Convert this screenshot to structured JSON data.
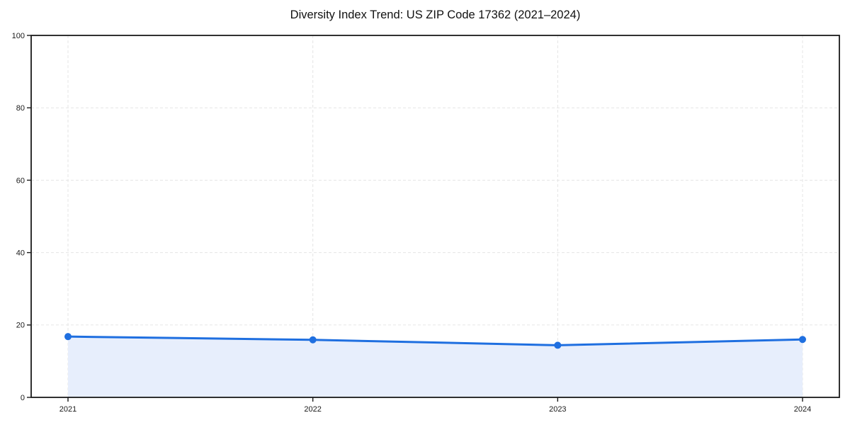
{
  "page": {
    "background": "#ffffff"
  },
  "chart_data": {
    "type": "line",
    "title": "Diversity Index Trend: US ZIP Code 17362 (2021–2024)",
    "x": [
      "2021",
      "2022",
      "2023",
      "2024"
    ],
    "series": [
      {
        "name": "Diversity Index",
        "values": [
          16.8,
          15.9,
          14.4,
          16.0
        ]
      }
    ],
    "xlabel": "",
    "ylabel": "",
    "ylim": [
      0,
      100
    ],
    "yticks": [
      0,
      20,
      40,
      60,
      80,
      100
    ],
    "grid": "dashed-both-directions",
    "legend": "none",
    "area_fill": true,
    "marker": "circle",
    "line_width": 3,
    "marker_radius": 5,
    "colors": {
      "line": "#1f6fe0",
      "marker": "#1f6fe0",
      "area_fill": "#e7eefc",
      "grid": "#e5e5e5",
      "spine": "#1a1a1a",
      "tick_text": "#1a1a1a",
      "title_text": "#111111",
      "background": "#ffffff"
    }
  }
}
